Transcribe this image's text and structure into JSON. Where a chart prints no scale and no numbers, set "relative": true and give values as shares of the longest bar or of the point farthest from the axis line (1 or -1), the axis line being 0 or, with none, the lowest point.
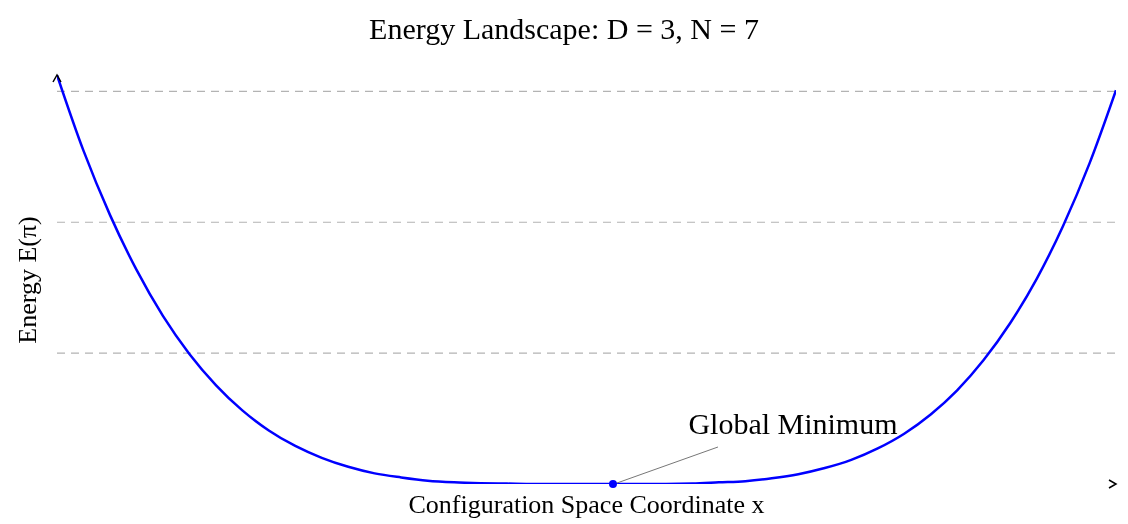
{
  "chart_data": {
    "type": "line",
    "title": "Energy Landscape: D = 3, N = 7",
    "xlabel": "Configuration Space Coordinate x",
    "ylabel": "Energy E(π)",
    "relative": true,
    "categories": [
      null,
      null,
      null,
      null,
      null,
      null,
      null,
      null,
      null,
      null,
      null,
      null,
      null,
      null,
      null,
      null,
      null,
      null,
      null,
      null,
      null,
      null,
      null,
      null,
      null,
      null,
      null,
      null,
      null,
      null,
      null,
      null,
      null,
      null,
      null,
      null,
      null,
      null,
      null,
      null,
      null
    ],
    "series": [
      {
        "color": "#0000ff",
        "values": [
          1,
          0.815,
          0.658,
          0.524,
          0.411,
          0.318,
          0.242,
          0.18,
          0.131,
          0.093,
          0.064,
          0.042,
          0.026,
          0.016,
          0.008,
          0.004,
          0.002,
          0.001,
          0,
          0,
          0,
          0,
          0,
          0,
          0.001,
          0.004,
          0.007,
          0.014,
          0.024,
          0.039,
          0.059,
          0.087,
          0.123,
          0.17,
          0.229,
          0.303,
          0.393,
          0.501,
          0.631,
          0.784,
          0.963
        ]
      }
    ],
    "ref_lines": [
      {
        "axis": "y",
        "value": 0.96,
        "color": "#b3b3b3",
        "line_style": "dashed"
      },
      {
        "axis": "y",
        "value": 0.64,
        "color": "#b3b3b3",
        "line_style": "dashed"
      },
      {
        "axis": "y",
        "value": 0.32,
        "color": "#b3b3b3",
        "line_style": "dashed"
      }
    ],
    "annotations": [
      "Global Minimum"
    ]
  }
}
